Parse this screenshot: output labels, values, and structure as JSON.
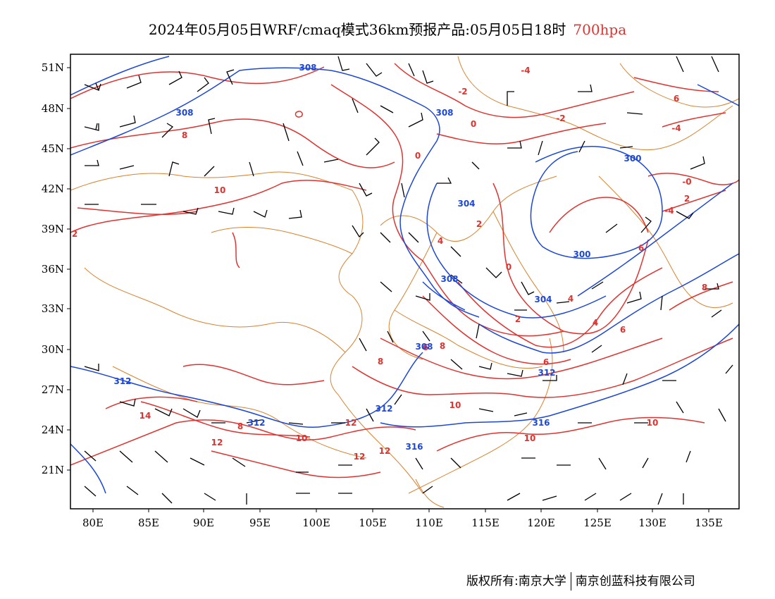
{
  "title": {
    "main": "2024年05月05日WRF/cmaq模式36km预报产品:05月05日18时",
    "level": "700hpa"
  },
  "colors": {
    "temperature": "#e0332f",
    "geopotential": "#1d47d8",
    "boundary": "#d9832e",
    "wind": "#000000",
    "level_text": "#e0332f"
  },
  "axes": {
    "lat_labels": [
      "51N",
      "48N",
      "45N",
      "42N",
      "39N",
      "36N",
      "33N",
      "30N",
      "27N",
      "24N",
      "21N"
    ],
    "lon_labels": [
      "80E",
      "85E",
      "90E",
      "95E",
      "100E",
      "105E",
      "110E",
      "115E",
      "120E",
      "125E",
      "130E",
      "135E"
    ]
  },
  "temperature_labels": [
    "2",
    "-4",
    "-2",
    "6",
    "0",
    "-2",
    "-4",
    "8",
    "10",
    "-0",
    "2",
    "-4",
    "2",
    "4",
    "0",
    "6",
    "0",
    "2",
    "4",
    "4",
    "6",
    "8",
    "6",
    "8",
    "6",
    "8",
    "14",
    "8",
    "12",
    "10",
    "12",
    "12",
    "12",
    "10",
    "10",
    "10"
  ],
  "height_labels": [
    "308",
    "308",
    "308",
    "300",
    "304",
    "300",
    "308",
    "304",
    "308",
    "312",
    "312",
    "312",
    "312",
    "316",
    "316"
  ],
  "footer": {
    "owner": "版权所有:南京大学",
    "company": "南京创蓝科技有限公司"
  }
}
